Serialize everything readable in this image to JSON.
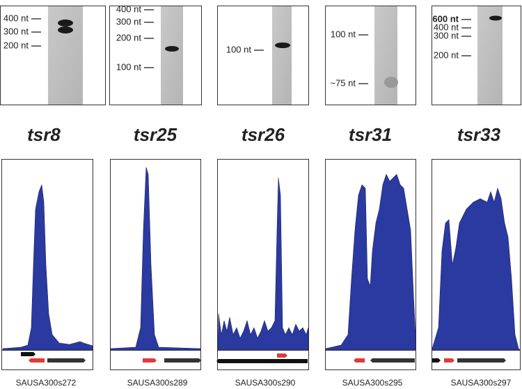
{
  "panels": [
    {
      "markers": [
        "400 nt",
        "300 nt",
        "200 nt"
      ],
      "name": "tsr8",
      "locus": "SAUSA300s272"
    },
    {
      "markers": [
        "400 nt",
        "300 nt",
        "200 nt",
        "100 nt"
      ],
      "name": "tsr25",
      "locus": "SAUSA300s289"
    },
    {
      "markers": [
        "100 nt"
      ],
      "name": "tsr26",
      "locus": "SAUSA300s290"
    },
    {
      "markers": [
        "100 nt",
        "~75 nt"
      ],
      "name": "tsr31",
      "locus": "SAUSA300s295"
    },
    {
      "markers": [
        "600 nt",
        "400 nt",
        "300 nt",
        "200 nt"
      ],
      "name": "tsr33",
      "locus": "SAUSA300s297"
    }
  ]
}
